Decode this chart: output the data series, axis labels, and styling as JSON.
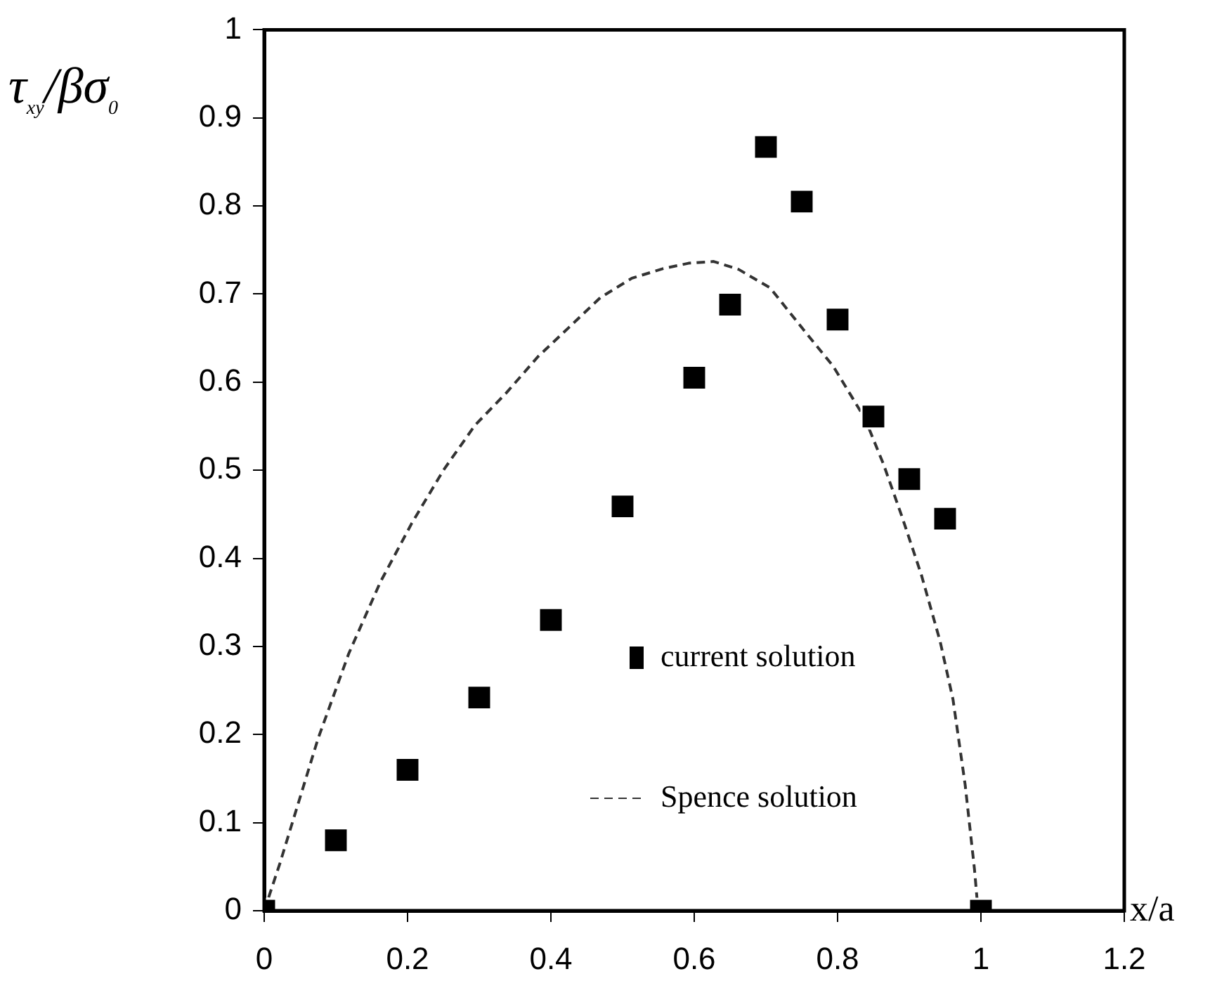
{
  "chart_data": {
    "type": "scatter",
    "xlabel": "x/a",
    "ylabel": "τ$_{xy}$/βσ$_{0}$",
    "xlim": [
      0,
      1.2
    ],
    "xticks": [
      0,
      0.2,
      0.4,
      0.6,
      0.8,
      1,
      1.2
    ],
    "ylim": [
      0,
      1
    ],
    "yticks": [
      0,
      0.1,
      0.2,
      0.3,
      0.4,
      0.5,
      0.6,
      0.7,
      0.8,
      0.9,
      1
    ],
    "grid": false,
    "legend": "bottom right",
    "series": [
      {
        "name": "current solution",
        "type": "scatter",
        "marker": "square",
        "color": "#000000",
        "x": [
          0,
          0.1,
          0.2,
          0.3,
          0.4,
          0.5,
          0.6,
          0.65,
          0.7,
          0.75,
          0.8,
          0.85,
          0.9,
          0.95,
          1
        ],
        "values": [
          0,
          0.08,
          0.16,
          0.242,
          0.33,
          0.459,
          0.605,
          0.688,
          0.867,
          0.805,
          0.671,
          0.561,
          0.49,
          0.445,
          0
        ]
      },
      {
        "name": "Spence solution",
        "type": "line",
        "marker": "none",
        "line_style": "dashed",
        "color": "#333333",
        "x": [
          0,
          0.022,
          0.075,
          0.118,
          0.162,
          0.206,
          0.25,
          0.294,
          0.338,
          0.382,
          0.425,
          0.469,
          0.513,
          0.557,
          0.592,
          0.627,
          0.662,
          0.706,
          0.75,
          0.794,
          0.838,
          0.864,
          0.89,
          0.917,
          0.943,
          0.961,
          0.978,
          0.991,
          0.996
        ],
        "values": [
          0,
          0.054,
          0.195,
          0.292,
          0.373,
          0.44,
          0.5,
          0.551,
          0.588,
          0.629,
          0.662,
          0.696,
          0.718,
          0.729,
          0.735,
          0.737,
          0.728,
          0.707,
          0.662,
          0.618,
          0.559,
          0.507,
          0.447,
          0.381,
          0.306,
          0.24,
          0.143,
          0.047,
          0
        ]
      }
    ]
  }
}
